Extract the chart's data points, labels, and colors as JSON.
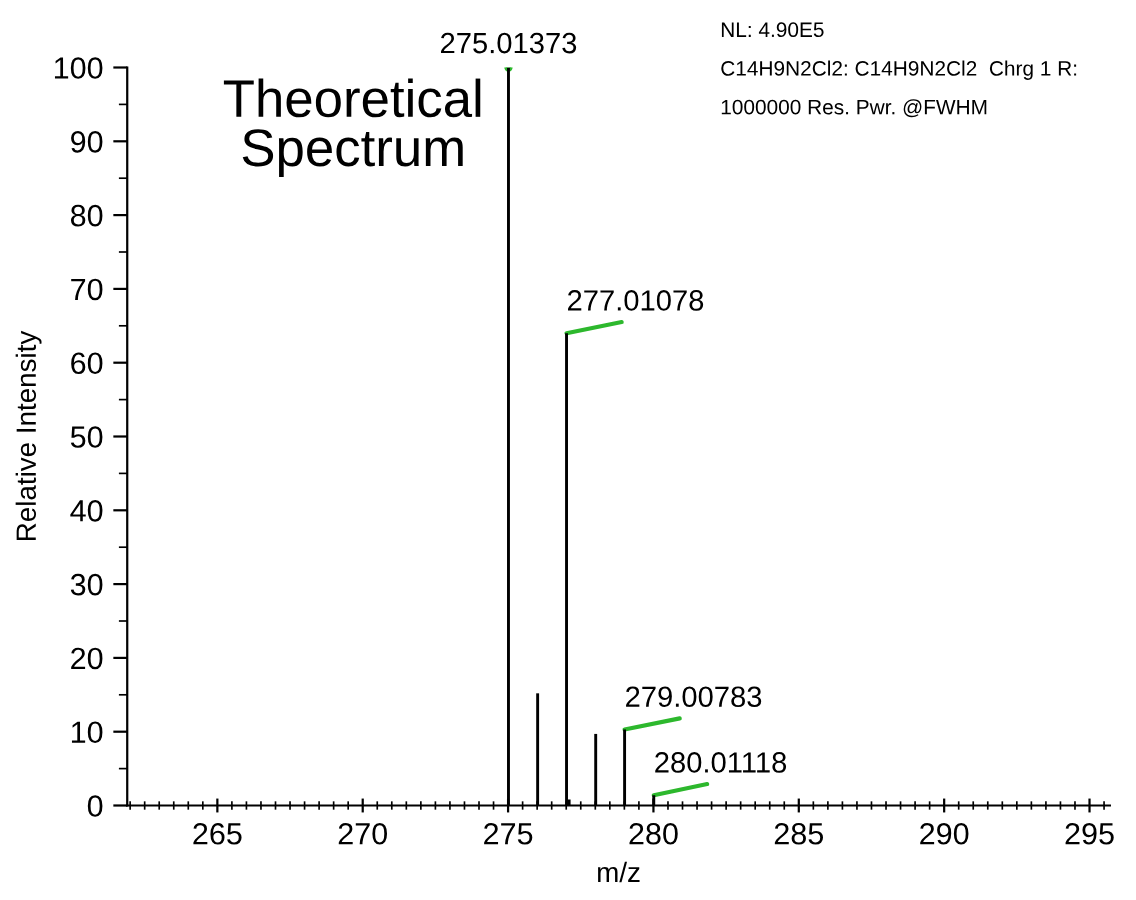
{
  "chart_data": {
    "type": "bar",
    "xlabel": "m/z",
    "ylabel": "Relative Intensity",
    "x": [
      275.01373,
      276.017,
      277.01078,
      277.1,
      278.014,
      279.00783,
      280.01118
    ],
    "series": [
      {
        "color": "#000000",
        "values": [
          100,
          15.2,
          64,
          0.8,
          9.7,
          10.3,
          1.4
        ]
      }
    ],
    "xlim": [
      261.9,
      295.7
    ],
    "xticks": [
      265,
      270,
      275,
      280,
      285,
      290,
      295
    ],
    "ylim": [
      0,
      100
    ],
    "yticks": [
      0,
      10,
      20,
      30,
      40,
      50,
      60,
      70,
      80,
      90,
      100
    ],
    "grid": false,
    "legend": false,
    "annotations": [
      "Theoretical\nSpectrum",
      "NL: 4.90E5",
      "C14H9N2Cl2: C14H9N2Cl2  Chrg 1 R:",
      "1000000 Res. Pwr. @FWHM",
      {
        "text": "275.01373",
        "x": 275.01373,
        "y": 100
      },
      {
        "text": "277.01078",
        "x": 277.01078,
        "y": 64
      },
      {
        "text": "279.00783",
        "x": 279.00783,
        "y": 10.3
      },
      {
        "text": "280.01118",
        "x": 280.01118,
        "y": 1.4
      }
    ]
  }
}
